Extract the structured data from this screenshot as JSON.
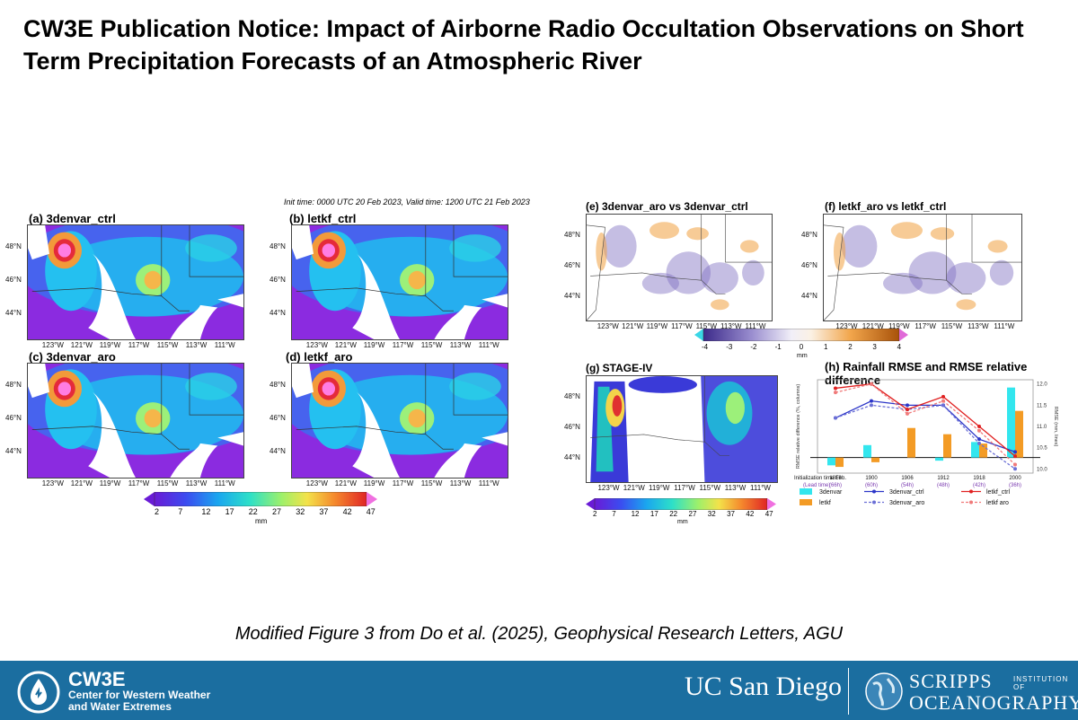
{
  "title": "CW3E Publication Notice: Impact of Airborne Radio Occultation Observations on Short Term Precipitation Forecasts of an Atmospheric River",
  "figure": {
    "header": "Init time: 0000 UTC 20 Feb 2023,    Valid time: 1200 UTC 21 Feb 2023",
    "panels": [
      {
        "label": "(a) 3denvar_ctrl"
      },
      {
        "label": "(b) letkf_ctrl"
      },
      {
        "label": "(c) 3denvar_aro"
      },
      {
        "label": "(d) letkf_aro"
      },
      {
        "label": "(e) 3denvar_aro vs 3denvar_ctrl"
      },
      {
        "label": "(f) letkf_aro vs letkf_ctrl"
      },
      {
        "label": "(g) STAGE-IV"
      },
      {
        "label": "(h) Rainfall RMSE and RMSE relative difference"
      }
    ],
    "lat_ticks": [
      "48°N",
      "46°N",
      "44°N"
    ],
    "lon_ticks": [
      "123°W",
      "121°W",
      "119°W",
      "117°W",
      "115°W",
      "113°W",
      "111°W"
    ],
    "precip_colorbar": {
      "ticks": [
        "2",
        "7",
        "12",
        "17",
        "22",
        "27",
        "32",
        "37",
        "42",
        "47"
      ],
      "unit": "mm"
    },
    "diff_colorbar": {
      "ticks": [
        "-4",
        "-3",
        "-2",
        "-1",
        "0",
        "1",
        "2",
        "3",
        "4"
      ],
      "unit": "mm"
    },
    "chart": {
      "y_left_label": "RMSE relative difference (%, columns)",
      "y_right_label": "RMSE (mm, lines)",
      "y_right_ticks": [
        "12.0",
        "11.5",
        "11.0",
        "10.5",
        "10.0"
      ],
      "x_axis_title": "Initialization time Feb.",
      "lead_title": "(Lead time)",
      "x_ticks": [
        "1818",
        "1900",
        "1906",
        "1912",
        "1918",
        "2000"
      ],
      "lead_ticks": [
        "(66h)",
        "(60h)",
        "(54h)",
        "(48h)",
        "(42h)",
        "(36h)"
      ],
      "legend": [
        "3denvar",
        "letkf",
        "3denvar_ctrl",
        "3denvar_aro",
        "letkf_ctrl",
        "letkf aro"
      ]
    }
  },
  "chart_data": {
    "type": "bar",
    "title": "(h) Rainfall RMSE and RMSE relative difference",
    "categories": [
      "1818",
      "1900",
      "1906",
      "1912",
      "1918",
      "2000"
    ],
    "lead_times": [
      "(66h)",
      "(60h)",
      "(54h)",
      "(48h)",
      "(42h)",
      "(36h)"
    ],
    "xlabel": "Initialization time Feb.",
    "ylabel": "RMSE relative difference (%, columns)",
    "y2label": "RMSE (mm, lines)",
    "y2lim": [
      9.9,
      12.1
    ],
    "bars": [
      {
        "name": "3denvar",
        "color": "#33e6ee",
        "values": [
          -0.5,
          0.8,
          0.0,
          -0.2,
          1.0,
          4.5
        ]
      },
      {
        "name": "letkf",
        "color": "#f39b25",
        "values": [
          -0.6,
          -0.3,
          1.9,
          1.5,
          0.9,
          3.0
        ]
      }
    ],
    "lines": [
      {
        "name": "3denvar_ctrl",
        "color": "#2b35c8",
        "dash": false,
        "values": [
          11.2,
          11.6,
          11.5,
          11.5,
          10.7,
          10.4
        ]
      },
      {
        "name": "3denvar_aro",
        "color": "#6b6fd6",
        "dash": true,
        "values": [
          11.2,
          11.5,
          11.4,
          11.5,
          10.6,
          10.0
        ]
      },
      {
        "name": "letkf_ctrl",
        "color": "#e02020",
        "dash": false,
        "values": [
          11.9,
          12.0,
          11.4,
          11.7,
          11.0,
          10.3
        ]
      },
      {
        "name": "letkf aro",
        "color": "#f07a7a",
        "dash": true,
        "values": [
          11.8,
          12.0,
          11.3,
          11.6,
          10.9,
          10.1
        ]
      }
    ]
  },
  "caption": "Modified Figure 3 from Do et al. (2025), Geophysical Research Letters, AGU",
  "footer": {
    "cw3e_name": "CW3E",
    "cw3e_sub": "Center for Western Weather and Water Extremes",
    "ucsd": "UC San Diego",
    "scripps_top": "SCRIPPS",
    "scripps_inst": "INSTITUTION OF",
    "scripps_bottom": "OCEANOGRAPHY",
    "brand_color": "#1b6ea0"
  }
}
